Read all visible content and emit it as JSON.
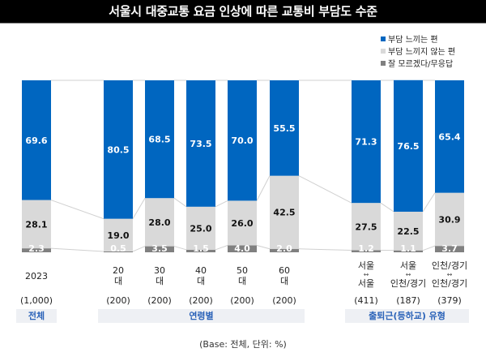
{
  "title": "서울시 대중교통 요금 인상에 따른 교통비 부담도 수준",
  "legend": [
    {
      "label": "부담 느끼는 편",
      "color": "#0066c0"
    },
    {
      "label": "부담 느끼지 않는 편",
      "color": "#d9d9d9"
    },
    {
      "label": "잘 모르겠다/무응답",
      "color": "#808080"
    }
  ],
  "footnote": "(Base: 전체, 단위: %)",
  "chart_data": {
    "type": "bar",
    "stacked": true,
    "title": "서울시 대중교통 요금 인상에 따른 교통비 부담도 수준",
    "categories": [
      "2023",
      "20 대",
      "30 대",
      "40 대",
      "50 대",
      "60 대",
      "서울 ↔ 서울",
      "서울 ↔ 인천/경기",
      "인천/경기 ↔ 인천/경기"
    ],
    "category_lines": [
      [
        "2023"
      ],
      [
        "20",
        "대"
      ],
      [
        "30",
        "대"
      ],
      [
        "40",
        "대"
      ],
      [
        "50",
        "대"
      ],
      [
        "60",
        "대"
      ],
      [
        "서울",
        "↔",
        "서울"
      ],
      [
        "서울",
        "↔",
        "인천/경기"
      ],
      [
        "인천/경기",
        "↔",
        "인천/경기"
      ]
    ],
    "bases": [
      "(1,000)",
      "(200)",
      "(200)",
      "(200)",
      "(200)",
      "(200)",
      "(411)",
      "(187)",
      "(379)"
    ],
    "groups": [
      {
        "label": "전체",
        "members": [
          0
        ]
      },
      {
        "label": "연령별",
        "members": [
          1,
          2,
          3,
          4,
          5
        ]
      },
      {
        "label": "출퇴근(등하교) 유형",
        "members": [
          6,
          7,
          8
        ]
      }
    ],
    "series": [
      {
        "name": "부담 느끼는 편",
        "color": "#0066c0",
        "label_color": "#ffffff",
        "values": [
          69.6,
          80.5,
          68.5,
          73.5,
          70.0,
          55.5,
          71.3,
          76.5,
          65.4
        ],
        "labels": [
          "69.6",
          "80.5",
          "68.5",
          "73.5",
          "70.0",
          "55.5",
          "71.3",
          "76.5",
          "65.4"
        ]
      },
      {
        "name": "부담 느끼지 않는 편",
        "color": "#d9d9d9",
        "label_color": "#111111",
        "values": [
          28.1,
          19.0,
          28.0,
          25.0,
          26.0,
          42.5,
          27.5,
          22.5,
          30.9
        ],
        "labels": [
          "28.1",
          "19.0",
          "28.0",
          "25.0",
          "26.0",
          "42.5",
          "27.5",
          "22.5",
          "30.9"
        ]
      },
      {
        "name": "잘 모르겠다/무응답",
        "color": "#808080",
        "label_color": "#ffffff",
        "values": [
          2.3,
          0.5,
          3.5,
          1.5,
          4.0,
          2.0,
          1.2,
          1.1,
          3.7
        ],
        "labels": [
          "2.3",
          "0.5",
          "3.5",
          "1.5",
          "4.0",
          "2.0",
          "1.2",
          "1.1",
          "3.7"
        ]
      }
    ],
    "ylim": [
      0,
      100
    ],
    "unit": "%",
    "xlabel": "",
    "ylabel": "",
    "grid": false,
    "legend_position": "top-right"
  }
}
